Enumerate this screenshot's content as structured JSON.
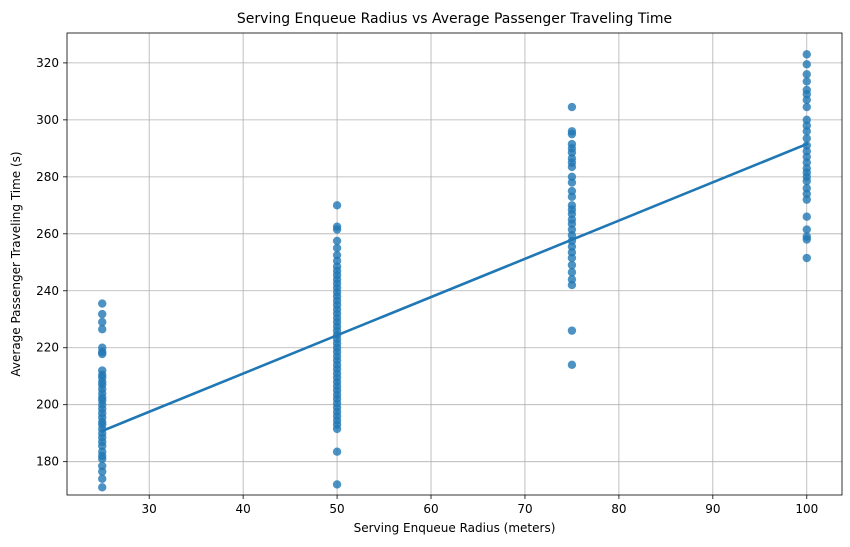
{
  "chart_data": {
    "type": "scatter",
    "title": "Serving Enqueue Radius vs Average Passenger Traveling Time",
    "xlabel": "Serving Enqueue Radius (meters)",
    "ylabel": "Average Passenger Traveling Time (s)",
    "xlim": [
      21.25,
      103.75
    ],
    "ylim": [
      168.3,
      330.5
    ],
    "xticks": [
      30,
      40,
      50,
      60,
      70,
      80,
      90,
      100
    ],
    "yticks": [
      180,
      200,
      220,
      240,
      260,
      280,
      300,
      320
    ],
    "grid": true,
    "colors": {
      "points": "#1f77b4",
      "line": "#1f77b4"
    },
    "regression_line": {
      "x": [
        25,
        100
      ],
      "y": [
        190.8,
        291.5
      ]
    },
    "points": [
      {
        "x": 25,
        "y": 235.5
      },
      {
        "x": 25,
        "y": 231.8
      },
      {
        "x": 25,
        "y": 229.0
      },
      {
        "x": 25,
        "y": 226.5
      },
      {
        "x": 25,
        "y": 220.0
      },
      {
        "x": 25,
        "y": 218.5
      },
      {
        "x": 25,
        "y": 217.8
      },
      {
        "x": 25,
        "y": 212.0
      },
      {
        "x": 25,
        "y": 210.5
      },
      {
        "x": 25,
        "y": 209.5
      },
      {
        "x": 25,
        "y": 208.0
      },
      {
        "x": 25,
        "y": 207.0
      },
      {
        "x": 25,
        "y": 205.5
      },
      {
        "x": 25,
        "y": 204.0
      },
      {
        "x": 25,
        "y": 202.5
      },
      {
        "x": 25,
        "y": 201.5
      },
      {
        "x": 25,
        "y": 200.0
      },
      {
        "x": 25,
        "y": 198.5
      },
      {
        "x": 25,
        "y": 197.0
      },
      {
        "x": 25,
        "y": 195.5
      },
      {
        "x": 25,
        "y": 194.0
      },
      {
        "x": 25,
        "y": 193.0
      },
      {
        "x": 25,
        "y": 191.5
      },
      {
        "x": 25,
        "y": 190.0
      },
      {
        "x": 25,
        "y": 188.5
      },
      {
        "x": 25,
        "y": 187.0
      },
      {
        "x": 25,
        "y": 185.5
      },
      {
        "x": 25,
        "y": 183.5
      },
      {
        "x": 25,
        "y": 182.0
      },
      {
        "x": 25,
        "y": 181.0
      },
      {
        "x": 25,
        "y": 178.5
      },
      {
        "x": 25,
        "y": 176.5
      },
      {
        "x": 25,
        "y": 174.0
      },
      {
        "x": 25,
        "y": 171.0
      },
      {
        "x": 50,
        "y": 270.0
      },
      {
        "x": 50,
        "y": 262.5
      },
      {
        "x": 50,
        "y": 261.5
      },
      {
        "x": 50,
        "y": 257.5
      },
      {
        "x": 50,
        "y": 255.0
      },
      {
        "x": 50,
        "y": 252.5
      },
      {
        "x": 50,
        "y": 250.5
      },
      {
        "x": 50,
        "y": 248.5
      },
      {
        "x": 50,
        "y": 247.0
      },
      {
        "x": 50,
        "y": 245.5
      },
      {
        "x": 50,
        "y": 244.0
      },
      {
        "x": 50,
        "y": 242.5
      },
      {
        "x": 50,
        "y": 241.0
      },
      {
        "x": 50,
        "y": 239.5
      },
      {
        "x": 50,
        "y": 238.0
      },
      {
        "x": 50,
        "y": 236.5
      },
      {
        "x": 50,
        "y": 235.0
      },
      {
        "x": 50,
        "y": 233.5
      },
      {
        "x": 50,
        "y": 232.0
      },
      {
        "x": 50,
        "y": 230.5
      },
      {
        "x": 50,
        "y": 229.0
      },
      {
        "x": 50,
        "y": 227.5
      },
      {
        "x": 50,
        "y": 226.0
      },
      {
        "x": 50,
        "y": 224.5
      },
      {
        "x": 50,
        "y": 223.0
      },
      {
        "x": 50,
        "y": 221.5
      },
      {
        "x": 50,
        "y": 220.0
      },
      {
        "x": 50,
        "y": 218.5
      },
      {
        "x": 50,
        "y": 217.0
      },
      {
        "x": 50,
        "y": 215.5
      },
      {
        "x": 50,
        "y": 214.0
      },
      {
        "x": 50,
        "y": 212.5
      },
      {
        "x": 50,
        "y": 211.0
      },
      {
        "x": 50,
        "y": 209.5
      },
      {
        "x": 50,
        "y": 208.0
      },
      {
        "x": 50,
        "y": 206.5
      },
      {
        "x": 50,
        "y": 205.0
      },
      {
        "x": 50,
        "y": 203.5
      },
      {
        "x": 50,
        "y": 202.0
      },
      {
        "x": 50,
        "y": 200.5
      },
      {
        "x": 50,
        "y": 199.0
      },
      {
        "x": 50,
        "y": 197.5
      },
      {
        "x": 50,
        "y": 196.0
      },
      {
        "x": 50,
        "y": 194.5
      },
      {
        "x": 50,
        "y": 193.0
      },
      {
        "x": 50,
        "y": 191.5
      },
      {
        "x": 50,
        "y": 183.5
      },
      {
        "x": 50,
        "y": 172.0
      },
      {
        "x": 75,
        "y": 304.5
      },
      {
        "x": 75,
        "y": 296.0
      },
      {
        "x": 75,
        "y": 295.0
      },
      {
        "x": 75,
        "y": 291.5
      },
      {
        "x": 75,
        "y": 290.0
      },
      {
        "x": 75,
        "y": 288.5
      },
      {
        "x": 75,
        "y": 286.5
      },
      {
        "x": 75,
        "y": 285.0
      },
      {
        "x": 75,
        "y": 283.5
      },
      {
        "x": 75,
        "y": 280.0
      },
      {
        "x": 75,
        "y": 278.0
      },
      {
        "x": 75,
        "y": 275.0
      },
      {
        "x": 75,
        "y": 273.0
      },
      {
        "x": 75,
        "y": 270.0
      },
      {
        "x": 75,
        "y": 268.5
      },
      {
        "x": 75,
        "y": 267.0
      },
      {
        "x": 75,
        "y": 265.0
      },
      {
        "x": 75,
        "y": 263.5
      },
      {
        "x": 75,
        "y": 261.5
      },
      {
        "x": 75,
        "y": 259.5
      },
      {
        "x": 75,
        "y": 257.5
      },
      {
        "x": 75,
        "y": 255.5
      },
      {
        "x": 75,
        "y": 253.5
      },
      {
        "x": 75,
        "y": 251.5
      },
      {
        "x": 75,
        "y": 249.0
      },
      {
        "x": 75,
        "y": 246.5
      },
      {
        "x": 75,
        "y": 244.0
      },
      {
        "x": 75,
        "y": 242.0
      },
      {
        "x": 75,
        "y": 226.0
      },
      {
        "x": 75,
        "y": 214.0
      },
      {
        "x": 100,
        "y": 323.0
      },
      {
        "x": 100,
        "y": 319.5
      },
      {
        "x": 100,
        "y": 316.0
      },
      {
        "x": 100,
        "y": 313.5
      },
      {
        "x": 100,
        "y": 310.5
      },
      {
        "x": 100,
        "y": 309.0
      },
      {
        "x": 100,
        "y": 307.0
      },
      {
        "x": 100,
        "y": 304.5
      },
      {
        "x": 100,
        "y": 300.0
      },
      {
        "x": 100,
        "y": 298.0
      },
      {
        "x": 100,
        "y": 296.0
      },
      {
        "x": 100,
        "y": 293.5
      },
      {
        "x": 100,
        "y": 291.0
      },
      {
        "x": 100,
        "y": 289.0
      },
      {
        "x": 100,
        "y": 287.0
      },
      {
        "x": 100,
        "y": 285.0
      },
      {
        "x": 100,
        "y": 283.0
      },
      {
        "x": 100,
        "y": 281.5
      },
      {
        "x": 100,
        "y": 280.0
      },
      {
        "x": 100,
        "y": 278.5
      },
      {
        "x": 100,
        "y": 276.0
      },
      {
        "x": 100,
        "y": 274.0
      },
      {
        "x": 100,
        "y": 272.0
      },
      {
        "x": 100,
        "y": 266.0
      },
      {
        "x": 100,
        "y": 261.5
      },
      {
        "x": 100,
        "y": 259.0
      },
      {
        "x": 100,
        "y": 258.0
      },
      {
        "x": 100,
        "y": 251.5
      }
    ]
  }
}
